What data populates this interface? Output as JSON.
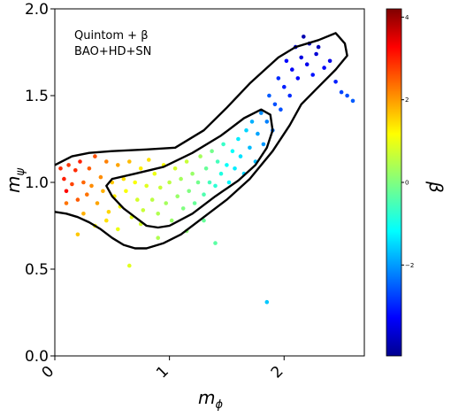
{
  "chart_data": {
    "type": "scatter",
    "annotation": {
      "line1": "Quintom + β",
      "line2": "BAO+HD+SN"
    },
    "xlabel_base": "m",
    "xlabel_sub": "ϕ",
    "ylabel_base": "m",
    "ylabel_sub": "ψ",
    "colorbar_label": "β",
    "xlim": [
      0,
      2.7
    ],
    "ylim": [
      0.0,
      2.0
    ],
    "x_ticks": [
      0,
      1,
      2
    ],
    "x_tick_labels": [
      "0",
      "1",
      "2"
    ],
    "y_ticks": [
      0.0,
      0.5,
      1.0,
      1.5,
      2.0
    ],
    "y_tick_labels": [
      "0.0",
      "0.5",
      "1.0",
      "1.5",
      "2.0"
    ],
    "colorbar_range": [
      -4.2,
      4.2
    ],
    "colorbar_ticks": [
      4,
      2,
      0,
      -2
    ],
    "colorbar_tick_labels": [
      "4",
      "2",
      "0",
      "−2"
    ],
    "colormap": "jet",
    "grid": false,
    "contours": [
      {
        "level": "inner",
        "points": [
          [
            0.45,
            0.98
          ],
          [
            0.5,
            0.92
          ],
          [
            0.6,
            0.85
          ],
          [
            0.7,
            0.8
          ],
          [
            0.8,
            0.75
          ],
          [
            0.9,
            0.74
          ],
          [
            1.0,
            0.75
          ],
          [
            1.2,
            0.82
          ],
          [
            1.4,
            0.92
          ],
          [
            1.6,
            1.01
          ],
          [
            1.75,
            1.1
          ],
          [
            1.85,
            1.2
          ],
          [
            1.9,
            1.3
          ],
          [
            1.88,
            1.39
          ],
          [
            1.8,
            1.42
          ],
          [
            1.65,
            1.37
          ],
          [
            1.45,
            1.27
          ],
          [
            1.2,
            1.17
          ],
          [
            0.95,
            1.09
          ],
          [
            0.7,
            1.05
          ],
          [
            0.5,
            1.02
          ],
          [
            0.45,
            0.98
          ]
        ]
      },
      {
        "level": "outer",
        "points": [
          [
            0.0,
            0.83
          ],
          [
            0.1,
            0.82
          ],
          [
            0.2,
            0.8
          ],
          [
            0.3,
            0.77
          ],
          [
            0.4,
            0.73
          ],
          [
            0.5,
            0.68
          ],
          [
            0.6,
            0.64
          ],
          [
            0.7,
            0.62
          ],
          [
            0.8,
            0.62
          ],
          [
            0.95,
            0.65
          ],
          [
            1.1,
            0.7
          ],
          [
            1.3,
            0.8
          ],
          [
            1.5,
            0.9
          ],
          [
            1.7,
            1.02
          ],
          [
            1.9,
            1.18
          ],
          [
            2.05,
            1.33
          ],
          [
            2.15,
            1.45
          ],
          [
            2.3,
            1.55
          ],
          [
            2.45,
            1.65
          ],
          [
            2.55,
            1.73
          ],
          [
            2.53,
            1.8
          ],
          [
            2.45,
            1.86
          ],
          [
            2.3,
            1.82
          ],
          [
            2.1,
            1.78
          ],
          [
            1.95,
            1.72
          ],
          [
            1.85,
            1.66
          ],
          [
            1.7,
            1.57
          ],
          [
            1.5,
            1.43
          ],
          [
            1.3,
            1.3
          ],
          [
            1.05,
            1.2
          ],
          [
            0.8,
            1.19
          ],
          [
            0.5,
            1.18
          ],
          [
            0.3,
            1.17
          ],
          [
            0.15,
            1.15
          ],
          [
            0.0,
            1.1
          ]
        ]
      }
    ],
    "points": [
      [
        0.05,
        1.08,
        2.8
      ],
      [
        0.08,
        1.02,
        2.9
      ],
      [
        0.1,
        0.95,
        3.1
      ],
      [
        0.12,
        1.1,
        2.7
      ],
      [
        0.15,
        0.99,
        2.6
      ],
      [
        0.18,
        1.07,
        2.8
      ],
      [
        0.2,
        0.9,
        2.4
      ],
      [
        0.22,
        1.12,
        2.9
      ],
      [
        0.25,
        1.0,
        2.3
      ],
      [
        0.28,
        0.93,
        2.2
      ],
      [
        0.3,
        1.08,
        2.4
      ],
      [
        0.32,
        0.98,
        2.0
      ],
      [
        0.35,
        1.15,
        2.5
      ],
      [
        0.37,
        0.88,
        1.8
      ],
      [
        0.4,
        1.03,
        2.0
      ],
      [
        0.42,
        0.95,
        1.7
      ],
      [
        0.45,
        1.12,
        2.1
      ],
      [
        0.47,
        0.83,
        1.4
      ],
      [
        0.5,
        1.0,
        1.5
      ],
      [
        0.52,
        0.92,
        1.2
      ],
      [
        0.55,
        1.1,
        1.8
      ],
      [
        0.57,
        0.86,
        1.0
      ],
      [
        0.6,
        1.02,
        1.3
      ],
      [
        0.62,
        0.95,
        1.0
      ],
      [
        0.65,
        1.12,
        1.6
      ],
      [
        0.67,
        0.8,
        0.8
      ],
      [
        0.7,
        1.0,
        1.0
      ],
      [
        0.72,
        0.9,
        0.7
      ],
      [
        0.75,
        1.08,
        1.2
      ],
      [
        0.77,
        0.84,
        0.6
      ],
      [
        0.8,
        0.98,
        0.8
      ],
      [
        0.82,
        1.13,
        1.3
      ],
      [
        0.85,
        0.9,
        0.5
      ],
      [
        0.87,
        1.05,
        0.9
      ],
      [
        0.9,
        0.82,
        0.4
      ],
      [
        0.92,
        0.97,
        0.6
      ],
      [
        0.95,
        1.1,
        1.0
      ],
      [
        0.97,
        0.88,
        0.3
      ],
      [
        1.0,
        1.0,
        0.5
      ],
      [
        1.02,
        0.78,
        0.2
      ],
      [
        1.05,
        1.08,
        0.7
      ],
      [
        1.07,
        0.92,
        0.2
      ],
      [
        1.1,
        1.02,
        0.3
      ],
      [
        1.12,
        0.85,
        0.0
      ],
      [
        1.15,
        1.12,
        0.6
      ],
      [
        1.17,
        0.95,
        0.0
      ],
      [
        1.2,
        1.05,
        0.2
      ],
      [
        1.22,
        0.88,
        -0.2
      ],
      [
        1.25,
        1.0,
        -0.1
      ],
      [
        1.27,
        1.15,
        0.3
      ],
      [
        1.3,
        0.93,
        -0.4
      ],
      [
        1.32,
        1.08,
        -0.2
      ],
      [
        1.35,
        1.0,
        -0.5
      ],
      [
        1.37,
        1.18,
        -0.1
      ],
      [
        1.4,
        0.98,
        -0.7
      ],
      [
        1.42,
        1.12,
        -0.5
      ],
      [
        1.45,
        1.05,
        -0.8
      ],
      [
        1.47,
        1.22,
        -0.6
      ],
      [
        1.5,
        1.1,
        -1.0
      ],
      [
        1.52,
        1.0,
        -1.1
      ],
      [
        1.55,
        1.18,
        -1.0
      ],
      [
        1.57,
        1.08,
        -1.2
      ],
      [
        1.6,
        1.25,
        -1.2
      ],
      [
        1.62,
        1.15,
        -1.3
      ],
      [
        1.65,
        1.05,
        -1.4
      ],
      [
        1.67,
        1.3,
        -1.4
      ],
      [
        1.7,
        1.2,
        -1.6
      ],
      [
        1.72,
        1.35,
        -1.7
      ],
      [
        1.75,
        1.12,
        -1.6
      ],
      [
        1.77,
        1.28,
        -1.8
      ],
      [
        1.8,
        1.4,
        -2.0
      ],
      [
        1.82,
        1.22,
        -1.9
      ],
      [
        1.85,
        1.35,
        -2.1
      ],
      [
        1.87,
        1.5,
        -2.4
      ],
      [
        1.9,
        1.3,
        -2.2
      ],
      [
        1.92,
        1.45,
        -2.5
      ],
      [
        1.95,
        1.6,
        -2.8
      ],
      [
        1.97,
        1.42,
        -2.5
      ],
      [
        2.0,
        1.55,
        -2.9
      ],
      [
        2.02,
        1.7,
        -3.1
      ],
      [
        2.05,
        1.5,
        -2.8
      ],
      [
        2.07,
        1.65,
        -3.2
      ],
      [
        2.1,
        1.78,
        -3.5
      ],
      [
        2.12,
        1.6,
        -3.1
      ],
      [
        2.15,
        1.72,
        -3.4
      ],
      [
        2.17,
        1.84,
        -3.8
      ],
      [
        2.2,
        1.68,
        -3.3
      ],
      [
        2.22,
        1.8,
        -3.7
      ],
      [
        2.25,
        1.62,
        -3.0
      ],
      [
        2.28,
        1.74,
        -3.5
      ],
      [
        2.3,
        1.78,
        -3.7
      ],
      [
        2.35,
        1.66,
        -3.2
      ],
      [
        2.4,
        1.7,
        -3.3
      ],
      [
        2.45,
        1.58,
        -2.9
      ],
      [
        2.5,
        1.52,
        -2.6
      ],
      [
        2.55,
        1.5,
        -2.5
      ],
      [
        2.6,
        1.47,
        -2.4
      ],
      [
        1.85,
        0.31,
        -1.5
      ],
      [
        0.65,
        0.52,
        0.8
      ],
      [
        1.4,
        0.65,
        -0.3
      ],
      [
        0.2,
        0.7,
        1.5
      ],
      [
        0.35,
        0.75,
        1.1
      ],
      [
        0.55,
        0.73,
        0.9
      ],
      [
        0.9,
        0.68,
        0.4
      ],
      [
        1.15,
        0.72,
        0.1
      ],
      [
        1.3,
        0.78,
        -0.2
      ],
      [
        0.1,
        0.88,
        2.2
      ],
      [
        0.25,
        0.82,
        1.7
      ],
      [
        0.45,
        0.78,
        1.3
      ],
      [
        0.75,
        0.76,
        0.7
      ]
    ]
  }
}
